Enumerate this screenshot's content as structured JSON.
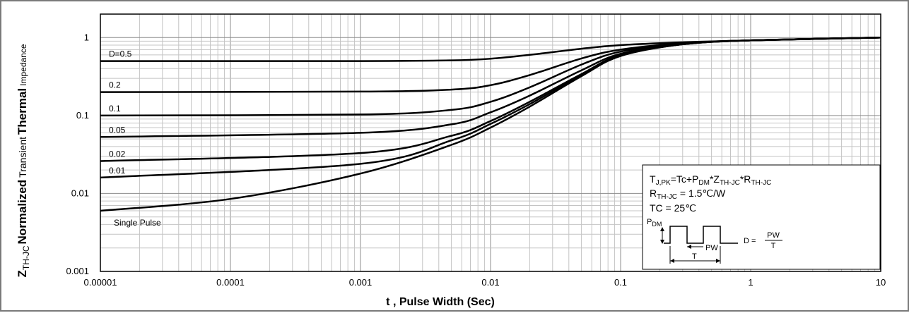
{
  "chart_data": {
    "type": "line",
    "x_scale": "log",
    "y_scale": "log",
    "xlim": [
      1e-05,
      10
    ],
    "ylim": [
      0.001,
      2
    ],
    "grid": true,
    "xlabel": "t , Pulse Width (Sec)",
    "ylabel": {
      "z": "Z",
      "z_sub": "TH-JC",
      "w1": "Normalized",
      "w2": "Transient",
      "w3": "Thermal",
      "w4": "Impedance"
    },
    "x_ticks": [
      {
        "v": 1e-05,
        "label": "0.00001"
      },
      {
        "v": 0.0001,
        "label": "0.0001"
      },
      {
        "v": 0.001,
        "label": "0.001"
      },
      {
        "v": 0.01,
        "label": "0.01"
      },
      {
        "v": 0.1,
        "label": "0.1"
      },
      {
        "v": 1,
        "label": "1"
      },
      {
        "v": 10,
        "label": "10"
      }
    ],
    "y_ticks": [
      {
        "v": 0.001,
        "label": "0.001"
      },
      {
        "v": 0.01,
        "label": "0.01"
      },
      {
        "v": 0.1,
        "label": "0.1"
      },
      {
        "v": 1,
        "label": "1"
      }
    ],
    "series": [
      {
        "name": "D=0.5",
        "x": [
          1e-05,
          0.001,
          0.005,
          0.01,
          0.02,
          0.05,
          0.1,
          0.3,
          1,
          10
        ],
        "y": [
          0.5,
          0.5,
          0.51,
          0.535,
          0.6,
          0.72,
          0.8,
          0.87,
          0.92,
          1.0
        ]
      },
      {
        "name": "0.2",
        "x": [
          1e-05,
          0.001,
          0.005,
          0.01,
          0.02,
          0.05,
          0.1,
          0.3,
          1,
          10
        ],
        "y": [
          0.2,
          0.203,
          0.215,
          0.245,
          0.33,
          0.54,
          0.7,
          0.85,
          0.92,
          1.0
        ]
      },
      {
        "name": "0.1",
        "x": [
          1e-05,
          0.001,
          0.005,
          0.01,
          0.02,
          0.05,
          0.1,
          0.3,
          1,
          10
        ],
        "y": [
          0.1,
          0.103,
          0.118,
          0.15,
          0.23,
          0.45,
          0.66,
          0.84,
          0.92,
          1.0
        ]
      },
      {
        "name": "0.05",
        "x": [
          1e-05,
          0.001,
          0.005,
          0.01,
          0.02,
          0.05,
          0.1,
          0.3,
          1,
          10
        ],
        "y": [
          0.053,
          0.06,
          0.077,
          0.11,
          0.18,
          0.38,
          0.62,
          0.83,
          0.92,
          1.0
        ]
      },
      {
        "name": "0.02",
        "x": [
          1e-05,
          0.001,
          0.005,
          0.01,
          0.02,
          0.05,
          0.1,
          0.3,
          1,
          10
        ],
        "y": [
          0.026,
          0.033,
          0.055,
          0.085,
          0.15,
          0.34,
          0.6,
          0.82,
          0.92,
          1.0
        ]
      },
      {
        "name": "0.01",
        "x": [
          1e-05,
          0.001,
          0.005,
          0.01,
          0.02,
          0.05,
          0.1,
          0.3,
          1,
          10
        ],
        "y": [
          0.016,
          0.024,
          0.048,
          0.078,
          0.14,
          0.33,
          0.59,
          0.82,
          0.92,
          1.0
        ]
      },
      {
        "name": "Single Pulse",
        "x": [
          1e-05,
          0.0001,
          0.001,
          0.005,
          0.01,
          0.02,
          0.05,
          0.1,
          0.3,
          1,
          10
        ],
        "y": [
          0.006,
          0.0085,
          0.018,
          0.042,
          0.07,
          0.13,
          0.32,
          0.58,
          0.82,
          0.92,
          1.0
        ]
      }
    ],
    "annotation": {
      "line1": {
        "a": "T",
        "a_sub": "J,PK",
        "b": "=Tc+P",
        "b_sub": "DM",
        "c": "*Z",
        "c_sub": "TH-JC",
        "d": "*R",
        "d_sub": "TH-JC"
      },
      "line2": {
        "a": "R",
        "a_sub": "TH-JC",
        "b": " = 1.5℃/W"
      },
      "line3": "TC = 25℃",
      "diagram": {
        "pdm": "P",
        "pdm_sub": "DM",
        "pw": "PW",
        "t": "T",
        "d_eq": "D =",
        "frac_num": "PW",
        "frac_den": "T"
      }
    }
  }
}
